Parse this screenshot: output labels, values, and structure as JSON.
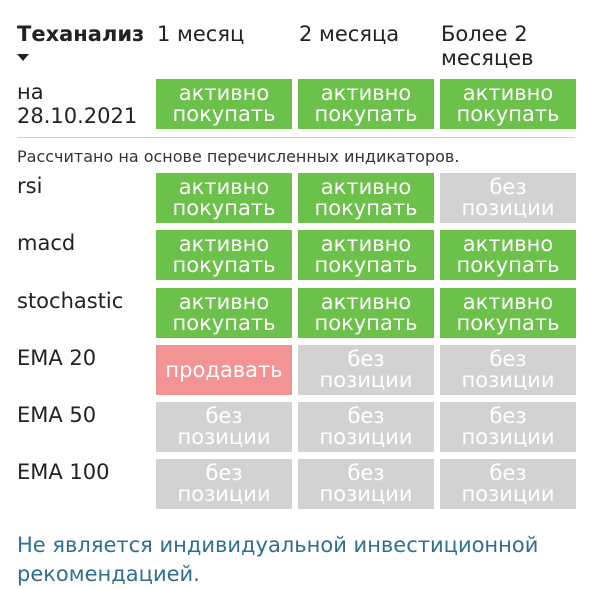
{
  "header": {
    "title": "Теханализ",
    "columns": [
      "1 месяц",
      "2 месяца",
      "Более 2 месяцев"
    ]
  },
  "summary_row": {
    "label_line1": "на",
    "label_line2": "28.10.2021",
    "cells": [
      {
        "line1": "активно",
        "line2": "покупать",
        "status": "buy"
      },
      {
        "line1": "активно",
        "line2": "покупать",
        "status": "buy"
      },
      {
        "line1": "активно",
        "line2": "покупать",
        "status": "buy"
      }
    ]
  },
  "note": "Рассчитано на основе перечисленных индикаторов.",
  "indicators": [
    {
      "label": "rsi",
      "cells": [
        {
          "line1": "активно",
          "line2": "покупать",
          "status": "buy"
        },
        {
          "line1": "активно",
          "line2": "покупать",
          "status": "buy"
        },
        {
          "line1": "без",
          "line2": "позиции",
          "status": "none"
        }
      ]
    },
    {
      "label": "macd",
      "cells": [
        {
          "line1": "активно",
          "line2": "покупать",
          "status": "buy"
        },
        {
          "line1": "активно",
          "line2": "покупать",
          "status": "buy"
        },
        {
          "line1": "активно",
          "line2": "покупать",
          "status": "buy"
        }
      ]
    },
    {
      "label": "stochastic",
      "cells": [
        {
          "line1": "активно",
          "line2": "покупать",
          "status": "buy"
        },
        {
          "line1": "активно",
          "line2": "покупать",
          "status": "buy"
        },
        {
          "line1": "активно",
          "line2": "покупать",
          "status": "buy"
        }
      ]
    },
    {
      "label": "EMA 20",
      "cells": [
        {
          "line1": "продавать",
          "line2": "",
          "status": "sell"
        },
        {
          "line1": "без",
          "line2": "позиции",
          "status": "none"
        },
        {
          "line1": "без",
          "line2": "позиции",
          "status": "none"
        }
      ]
    },
    {
      "label": "EMA 50",
      "cells": [
        {
          "line1": "без",
          "line2": "позиции",
          "status": "none"
        },
        {
          "line1": "без",
          "line2": "позиции",
          "status": "none"
        },
        {
          "line1": "без",
          "line2": "позиции",
          "status": "none"
        }
      ]
    },
    {
      "label": "EMA 100",
      "cells": [
        {
          "line1": "без",
          "line2": "позиции",
          "status": "none"
        },
        {
          "line1": "без",
          "line2": "позиции",
          "status": "none"
        },
        {
          "line1": "без",
          "line2": "позиции",
          "status": "none"
        }
      ]
    }
  ],
  "disclaimer": "Не является индивидуальной инвестиционной рекомендацией.",
  "colors": {
    "buy": "#6cc14a",
    "none": "#d2d2d2",
    "sell": "#f29494",
    "disclaimer": "#2f6f90"
  }
}
